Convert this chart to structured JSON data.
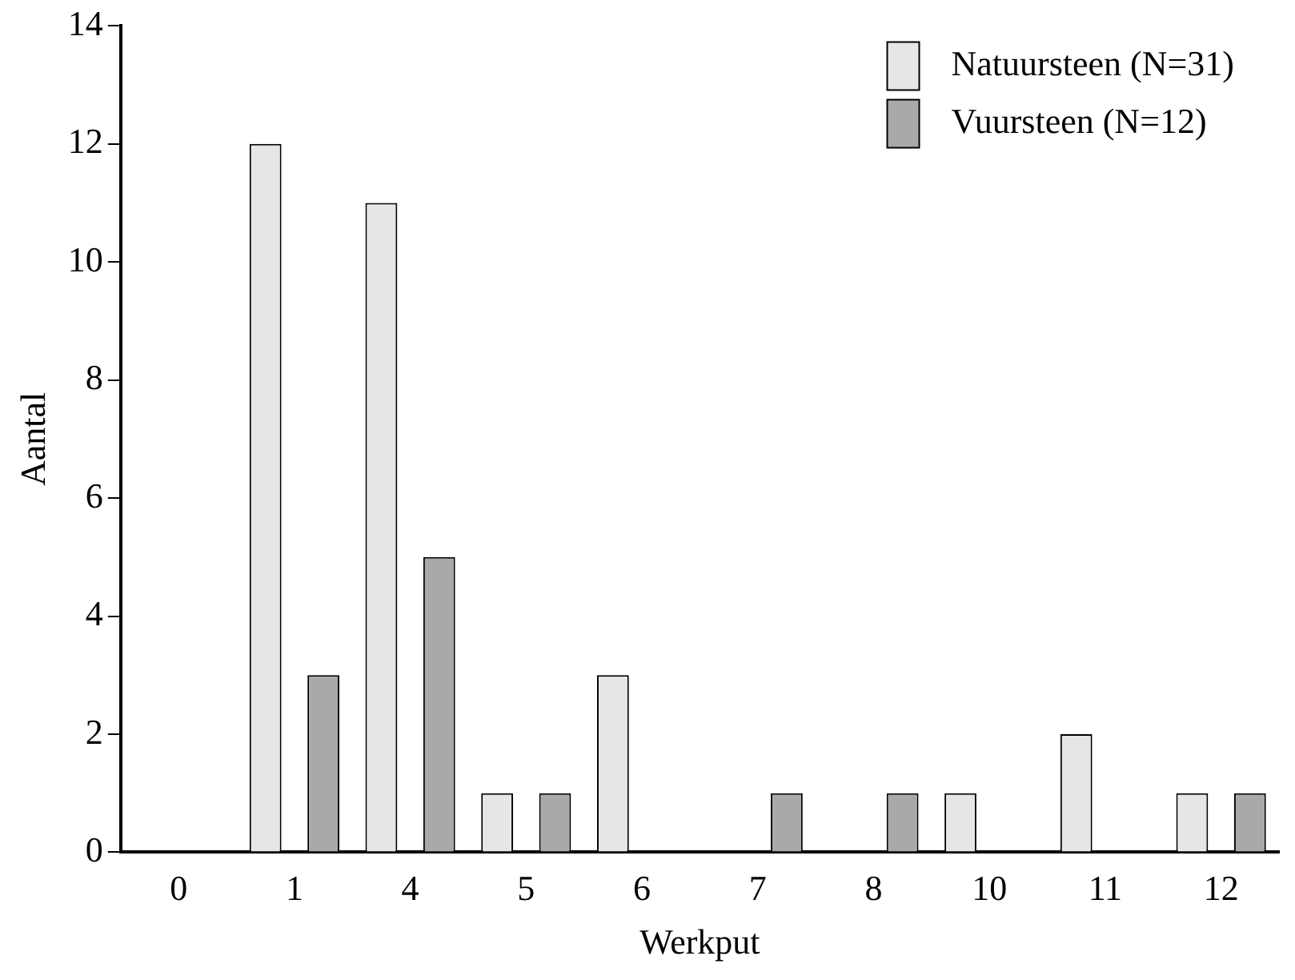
{
  "chart_data": {
    "type": "bar",
    "xlabel": "Werkput",
    "ylabel": "Aantal",
    "categories": [
      "0",
      "1",
      "4",
      "5",
      "6",
      "7",
      "8",
      "10",
      "11",
      "12"
    ],
    "series": [
      {
        "name": "Natuursteen (N=31)",
        "color": "#e6e6e6",
        "values": [
          null,
          12,
          11,
          1,
          3,
          0,
          0,
          1,
          2,
          1
        ]
      },
      {
        "name": "Vuursteen (N=12)",
        "color": "#a9a9a9",
        "values": [
          null,
          3,
          5,
          1,
          0,
          1,
          1,
          0,
          0,
          1
        ]
      }
    ],
    "ylim": [
      0,
      14
    ],
    "yticks": [
      0,
      2,
      4,
      6,
      8,
      10,
      12,
      14
    ],
    "grid": false,
    "legend": "top right"
  }
}
